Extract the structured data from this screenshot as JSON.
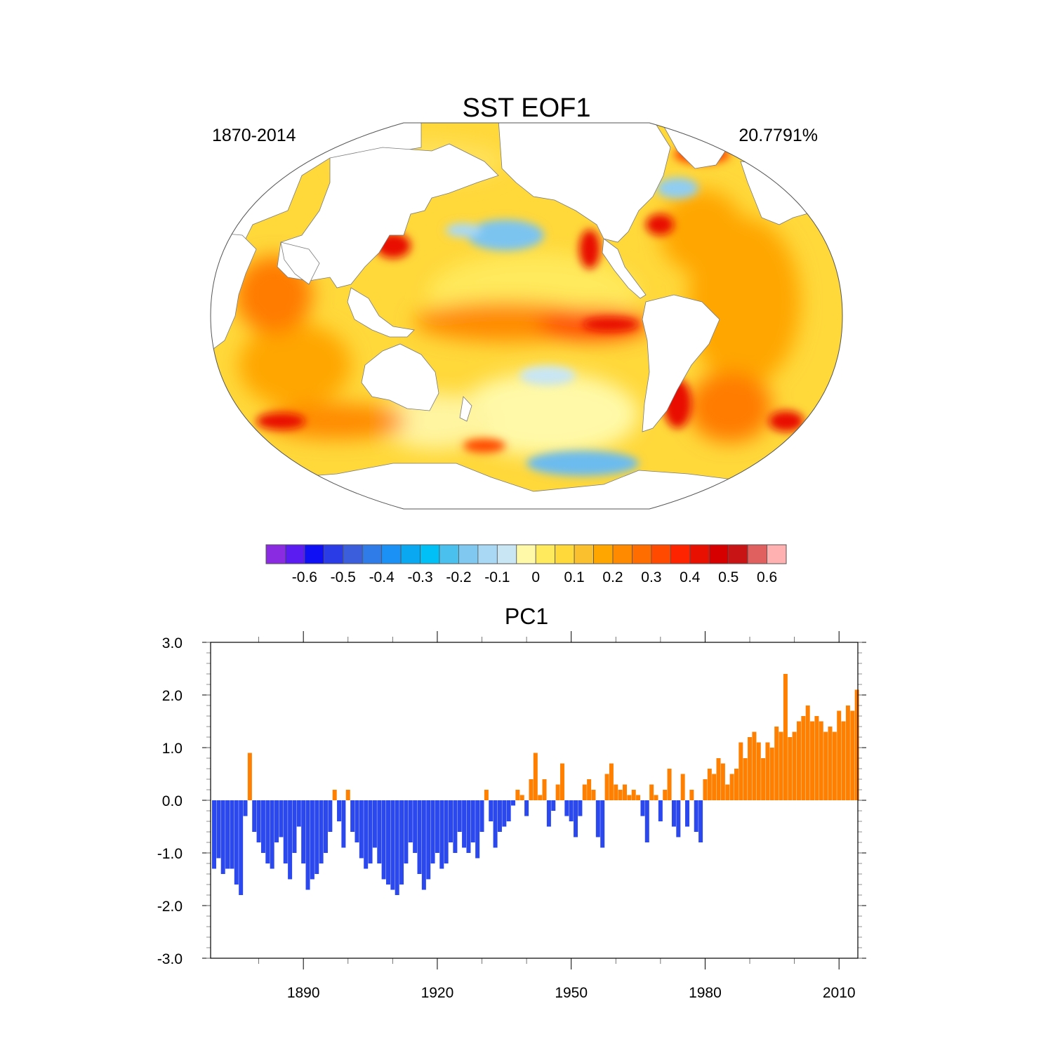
{
  "map_panel": {
    "title": "SST EOF1",
    "left_label": "1870-2014",
    "right_label": "20.7791%",
    "projection": "Winkel tripel",
    "ocean_field_colors": [
      "#fff9a8",
      "#ffe15c",
      "#fbc02d",
      "#ffa600",
      "#ff7b00",
      "#ff4a00",
      "#e81000"
    ],
    "land_color": "#ffffff"
  },
  "colorbar": {
    "colors": [
      "#8a2be2",
      "#5a1cf0",
      "#1010f5",
      "#2a3ce6",
      "#3b5fdc",
      "#2f7ce8",
      "#1b91f5",
      "#0ba8f2",
      "#00c0f5",
      "#4ac0ef",
      "#80c8ef",
      "#a8d8f4",
      "#c8e6f4",
      "#fff9a8",
      "#ffe95c",
      "#ffd83a",
      "#fbc02d",
      "#ffa600",
      "#ff8a00",
      "#ff6d00",
      "#ff4a00",
      "#ff2400",
      "#e81000",
      "#d60000",
      "#c81414",
      "#e06060",
      "#ffb0b0"
    ],
    "tick_labels": [
      "-0.6",
      "-0.5",
      "-0.4",
      "-0.3",
      "-0.2",
      "-0.1",
      "0",
      "0.1",
      "0.2",
      "0.3",
      "0.4",
      "0.5",
      "0.6"
    ]
  },
  "chart_data": {
    "type": "bar",
    "title": "PC1",
    "xlabel": "",
    "ylabel": "",
    "xlim": [
      1870,
      2015
    ],
    "ylim": [
      -3.0,
      3.0
    ],
    "x_tick_labels": [
      "1890",
      "1920",
      "1950",
      "1980",
      "2010"
    ],
    "y_tick_labels": [
      "3.0",
      "2.0",
      "1.0",
      "0.0",
      "-1.0",
      "-2.0",
      "-3.0"
    ],
    "positive_color": "#ff8000",
    "negative_color": "#2b48ef",
    "x": [
      1870,
      1871,
      1872,
      1873,
      1874,
      1875,
      1876,
      1877,
      1878,
      1879,
      1880,
      1881,
      1882,
      1883,
      1884,
      1885,
      1886,
      1887,
      1888,
      1889,
      1890,
      1891,
      1892,
      1893,
      1894,
      1895,
      1896,
      1897,
      1898,
      1899,
      1900,
      1901,
      1902,
      1903,
      1904,
      1905,
      1906,
      1907,
      1908,
      1909,
      1910,
      1911,
      1912,
      1913,
      1914,
      1915,
      1916,
      1917,
      1918,
      1919,
      1920,
      1921,
      1922,
      1923,
      1924,
      1925,
      1926,
      1927,
      1928,
      1929,
      1930,
      1931,
      1932,
      1933,
      1934,
      1935,
      1936,
      1937,
      1938,
      1939,
      1940,
      1941,
      1942,
      1943,
      1944,
      1945,
      1946,
      1947,
      1948,
      1949,
      1950,
      1951,
      1952,
      1953,
      1954,
      1955,
      1956,
      1957,
      1958,
      1959,
      1960,
      1961,
      1962,
      1963,
      1964,
      1965,
      1966,
      1967,
      1968,
      1969,
      1970,
      1971,
      1972,
      1973,
      1974,
      1975,
      1976,
      1977,
      1978,
      1979,
      1980,
      1981,
      1982,
      1983,
      1984,
      1985,
      1986,
      1987,
      1988,
      1989,
      1990,
      1991,
      1992,
      1993,
      1994,
      1995,
      1996,
      1997,
      1998,
      1999,
      2000,
      2001,
      2002,
      2003,
      2004,
      2005,
      2006,
      2007,
      2008,
      2009,
      2010,
      2011,
      2012,
      2013,
      2014
    ],
    "values": [
      -1.3,
      -1.1,
      -1.4,
      -1.3,
      -1.3,
      -1.6,
      -1.8,
      -0.3,
      0.9,
      -0.6,
      -0.8,
      -1.0,
      -1.2,
      -1.3,
      -0.8,
      -0.7,
      -1.2,
      -1.5,
      -1.0,
      -0.5,
      -1.2,
      -1.7,
      -1.5,
      -1.4,
      -1.2,
      -1.0,
      -0.6,
      0.2,
      -0.4,
      -0.9,
      0.2,
      -0.6,
      -0.8,
      -1.1,
      -1.3,
      -1.2,
      -0.9,
      -1.2,
      -1.5,
      -1.6,
      -1.7,
      -1.8,
      -1.6,
      -1.2,
      -0.8,
      -1.0,
      -1.4,
      -1.7,
      -1.5,
      -1.2,
      -1.0,
      -1.3,
      -1.2,
      -0.8,
      -1.0,
      -0.6,
      -0.9,
      -1.0,
      -0.8,
      -1.1,
      -0.6,
      0.2,
      -0.4,
      -0.9,
      -0.6,
      -0.5,
      -0.4,
      -0.1,
      0.2,
      0.1,
      -0.3,
      0.4,
      0.9,
      0.1,
      0.4,
      -0.5,
      -0.2,
      0.3,
      0.7,
      -0.3,
      -0.4,
      -0.7,
      -0.3,
      0.3,
      0.4,
      0.2,
      -0.7,
      -0.9,
      0.5,
      0.7,
      0.3,
      0.2,
      0.3,
      0.1,
      0.2,
      0.1,
      -0.3,
      -0.8,
      0.3,
      0.1,
      -0.4,
      0.2,
      0.6,
      -0.5,
      -0.7,
      0.5,
      -0.5,
      0.2,
      -0.6,
      -0.8,
      0.4,
      0.6,
      0.5,
      0.8,
      0.7,
      0.3,
      0.5,
      0.6,
      1.1,
      0.8,
      1.2,
      1.3,
      1.1,
      0.8,
      1.1,
      1.0,
      1.4,
      1.3,
      2.4,
      1.2,
      1.3,
      1.5,
      1.6,
      1.8,
      1.5,
      1.6,
      1.5,
      1.3,
      1.4,
      1.3,
      1.7,
      1.5,
      1.8,
      1.7,
      2.1
    ]
  }
}
